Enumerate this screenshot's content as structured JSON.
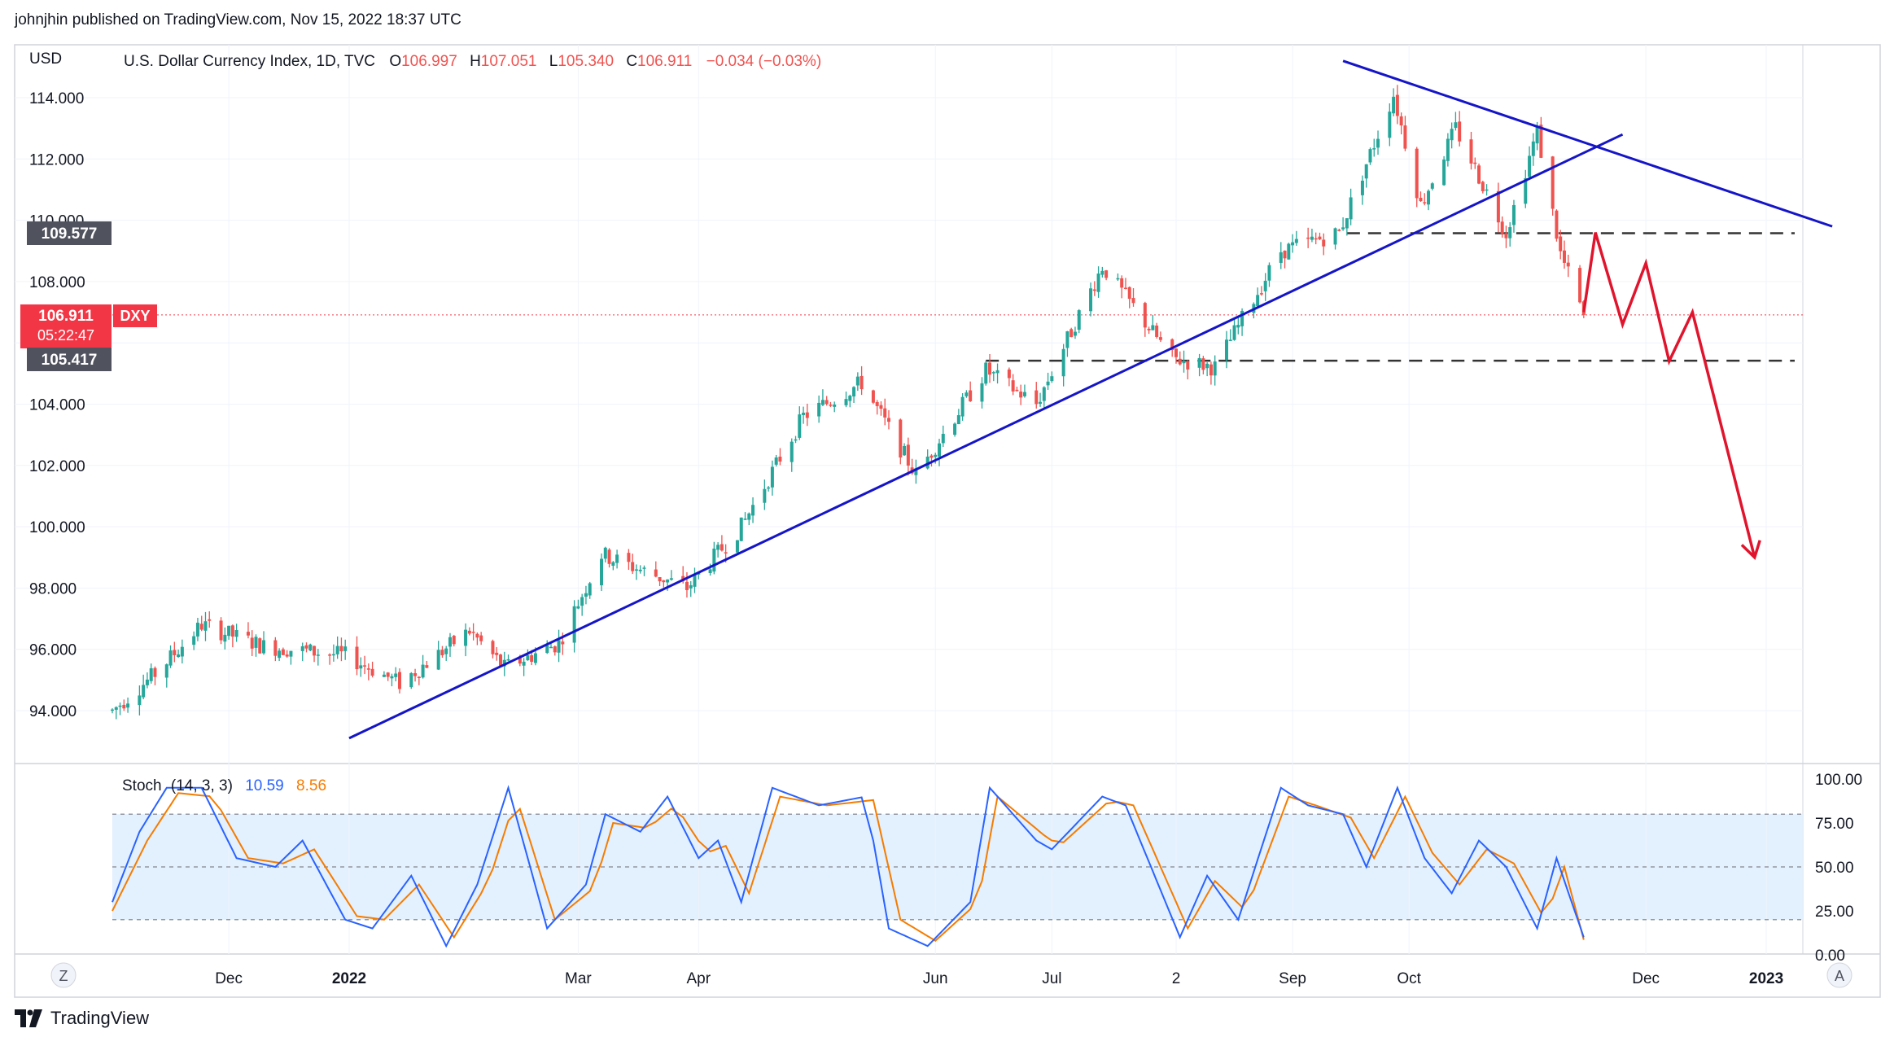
{
  "caption": "johnjhin published on TradingView.com, Nov 15, 2022 18:37 UTC",
  "brand": "TradingView",
  "colors": {
    "up": "#26a69a",
    "down": "#ef5350",
    "trendline": "#1515c8",
    "projection": "#e0152d",
    "stoch_k": "#2962ff",
    "stoch_d": "#f57c00",
    "band": "#e3f0fd"
  },
  "header": {
    "currency": "USD",
    "symbol": "U.S. Dollar Currency Index, 1D, TVC",
    "open_label": "O",
    "open": "106.997",
    "high_label": "H",
    "high": "107.051",
    "low_label": "L",
    "low": "105.340",
    "close_label": "C",
    "close": "106.911",
    "change": "−0.034 (−0.03%)"
  },
  "price_badges": {
    "upper_level": "109.577",
    "last_price": "106.911",
    "countdown": "05:22:47",
    "ticker": "DXY",
    "lower_level": "105.417"
  },
  "stoch": {
    "label": "Stoch",
    "params": "14, 3, 3",
    "k_value": "10.59",
    "d_value": "8.56",
    "y_ticks": [
      "100.00",
      "75.00",
      "50.00",
      "25.00",
      "0.00"
    ]
  },
  "axis_buttons": {
    "left": "Z",
    "right": "A"
  },
  "chart_data": {
    "type": "candlestick",
    "title": "U.S. Dollar Currency Index, 1D, TVC",
    "ylim": [
      93,
      115
    ],
    "y_ticks": [
      "114.000",
      "112.000",
      "110.000",
      "108.000",
      "106.000",
      "104.000",
      "102.000",
      "100.000",
      "98.000",
      "96.000",
      "94.000"
    ],
    "x_ticks": [
      "Dec",
      "2022",
      "Mar",
      "Apr",
      "Jun",
      "Jul",
      "2",
      "Sep",
      "Oct",
      "Dec",
      "2023"
    ],
    "grid": true,
    "price_anchors": [
      [
        "2021-11-01",
        94.0
      ],
      [
        "2021-11-12",
        95.2
      ],
      [
        "2021-11-24",
        96.8
      ],
      [
        "2021-12-10",
        96.1
      ],
      [
        "2021-12-31",
        95.8
      ],
      [
        "2022-01-14",
        94.9
      ],
      [
        "2022-02-01",
        96.6
      ],
      [
        "2022-02-10",
        95.4
      ],
      [
        "2022-02-24",
        96.2
      ],
      [
        "2022-03-07",
        99.1
      ],
      [
        "2022-03-29",
        98.0
      ],
      [
        "2022-04-12",
        100.0
      ],
      [
        "2022-04-28",
        103.6
      ],
      [
        "2022-05-13",
        104.7
      ],
      [
        "2022-05-27",
        101.7
      ],
      [
        "2022-06-14",
        105.1
      ],
      [
        "2022-06-27",
        104.0
      ],
      [
        "2022-07-14",
        108.5
      ],
      [
        "2022-08-01",
        105.5
      ],
      [
        "2022-08-12",
        105.2
      ],
      [
        "2022-08-29",
        109.0
      ],
      [
        "2022-09-13",
        109.6
      ],
      [
        "2022-09-27",
        114.1
      ],
      [
        "2022-10-04",
        110.5
      ],
      [
        "2022-10-13",
        113.0
      ],
      [
        "2022-10-26",
        109.6
      ],
      [
        "2022-11-03",
        112.9
      ],
      [
        "2022-11-09",
        108.9
      ],
      [
        "2022-11-15",
        106.9
      ]
    ],
    "levels": [
      109.577,
      105.417
    ],
    "trendlines": [
      {
        "from": [
          "2022-01-01",
          93.1
        ],
        "to": [
          "2022-11-25",
          112.8
        ]
      },
      {
        "from": [
          "2022-09-14",
          115.2
        ],
        "to": [
          "2023-01-18",
          109.8
        ]
      }
    ],
    "projection_path": [
      [
        "2022-11-15",
        107.0
      ],
      [
        "2022-11-18",
        109.6
      ],
      [
        "2022-11-25",
        106.6
      ],
      [
        "2022-12-01",
        108.6
      ],
      [
        "2022-12-07",
        105.4
      ],
      [
        "2022-12-13",
        107.0
      ],
      [
        "2022-12-29",
        99.0
      ]
    ],
    "stoch_k_anchors": [
      [
        "2021-11-01",
        30
      ],
      [
        "2021-11-08",
        70
      ],
      [
        "2021-11-15",
        95
      ],
      [
        "2021-11-24",
        95
      ],
      [
        "2021-12-03",
        55
      ],
      [
        "2021-12-13",
        50
      ],
      [
        "2021-12-20",
        65
      ],
      [
        "2021-12-31",
        20
      ],
      [
        "2022-01-07",
        15
      ],
      [
        "2022-01-17",
        45
      ],
      [
        "2022-01-26",
        5
      ],
      [
        "2022-02-03",
        40
      ],
      [
        "2022-02-11",
        95
      ],
      [
        "2022-02-21",
        15
      ],
      [
        "2022-03-03",
        40
      ],
      [
        "2022-03-08",
        80
      ],
      [
        "2022-03-17",
        70
      ],
      [
        "2022-03-24",
        90
      ],
      [
        "2022-04-01",
        55
      ],
      [
        "2022-04-06",
        65
      ],
      [
        "2022-04-12",
        30
      ],
      [
        "2022-04-20",
        95
      ],
      [
        "2022-05-02",
        85
      ],
      [
        "2022-05-14",
        90
      ],
      [
        "2022-05-20",
        15
      ],
      [
        "2022-05-30",
        5
      ],
      [
        "2022-06-10",
        30
      ],
      [
        "2022-06-15",
        95
      ],
      [
        "2022-06-27",
        65
      ],
      [
        "2022-07-01",
        60
      ],
      [
        "2022-07-14",
        90
      ],
      [
        "2022-07-20",
        85
      ],
      [
        "2022-08-03",
        10
      ],
      [
        "2022-08-10",
        45
      ],
      [
        "2022-08-18",
        20
      ],
      [
        "2022-08-29",
        95
      ],
      [
        "2022-09-05",
        85
      ],
      [
        "2022-09-14",
        80
      ],
      [
        "2022-09-20",
        50
      ],
      [
        "2022-09-28",
        95
      ],
      [
        "2022-10-05",
        55
      ],
      [
        "2022-10-12",
        35
      ],
      [
        "2022-10-19",
        65
      ],
      [
        "2022-10-26",
        50
      ],
      [
        "2022-11-03",
        15
      ],
      [
        "2022-11-08",
        55
      ],
      [
        "2022-11-15",
        10
      ]
    ],
    "stoch_d_anchors": [
      [
        "2021-11-01",
        25
      ],
      [
        "2021-11-10",
        65
      ],
      [
        "2021-11-18",
        92
      ],
      [
        "2021-11-27",
        90
      ],
      [
        "2021-12-06",
        55
      ],
      [
        "2021-12-15",
        52
      ],
      [
        "2021-12-23",
        60
      ],
      [
        "2022-01-03",
        22
      ],
      [
        "2022-01-10",
        20
      ],
      [
        "2022-01-19",
        40
      ],
      [
        "2022-01-28",
        10
      ],
      [
        "2022-02-06",
        42
      ],
      [
        "2022-02-13",
        90
      ],
      [
        "2022-02-23",
        20
      ],
      [
        "2022-03-05",
        38
      ],
      [
        "2022-03-10",
        75
      ],
      [
        "2022-03-19",
        72
      ],
      [
        "2022-03-26",
        85
      ],
      [
        "2022-04-03",
        58
      ],
      [
        "2022-04-08",
        62
      ],
      [
        "2022-04-14",
        35
      ],
      [
        "2022-04-22",
        90
      ],
      [
        "2022-05-04",
        85
      ],
      [
        "2022-05-16",
        88
      ],
      [
        "2022-05-23",
        20
      ],
      [
        "2022-06-01",
        8
      ],
      [
        "2022-06-12",
        30
      ],
      [
        "2022-06-17",
        90
      ],
      [
        "2022-06-29",
        68
      ],
      [
        "2022-07-03",
        62
      ],
      [
        "2022-07-16",
        88
      ],
      [
        "2022-07-22",
        85
      ],
      [
        "2022-08-05",
        15
      ],
      [
        "2022-08-12",
        42
      ],
      [
        "2022-08-20",
        25
      ],
      [
        "2022-08-31",
        90
      ],
      [
        "2022-09-07",
        85
      ],
      [
        "2022-09-16",
        78
      ],
      [
        "2022-09-22",
        55
      ],
      [
        "2022-09-30",
        90
      ],
      [
        "2022-10-07",
        58
      ],
      [
        "2022-10-14",
        40
      ],
      [
        "2022-10-21",
        60
      ],
      [
        "2022-10-28",
        52
      ],
      [
        "2022-11-05",
        20
      ],
      [
        "2022-11-10",
        50
      ],
      [
        "2022-11-15",
        8.56
      ]
    ]
  }
}
